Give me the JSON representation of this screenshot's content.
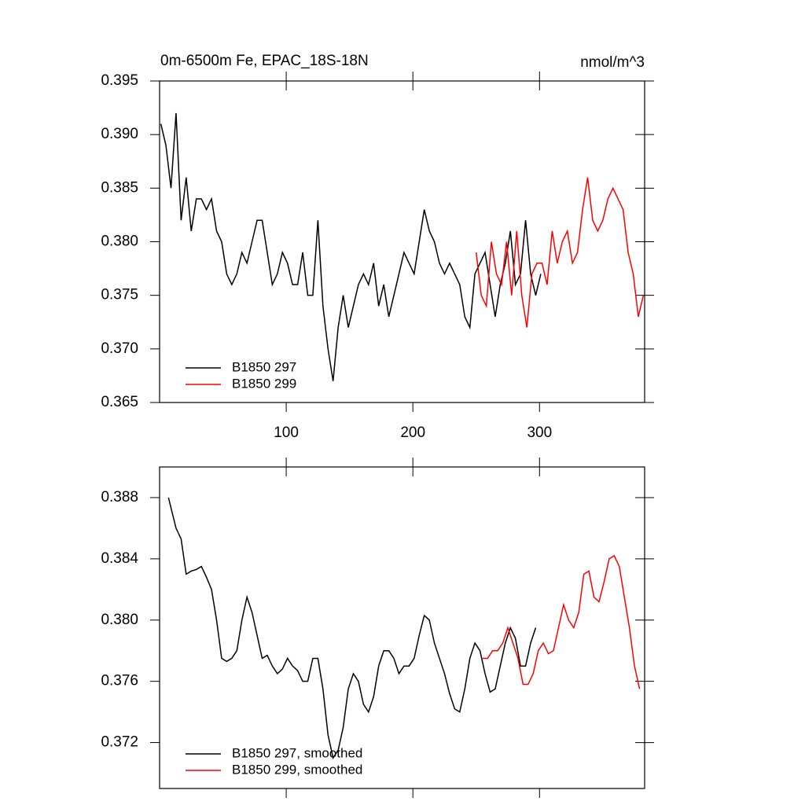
{
  "chart_data": [
    {
      "type": "line",
      "title": "0m-6500m Fe, EPAC_18S-18N",
      "units": "nmol/m^3",
      "xlim": [
        0,
        383
      ],
      "xticks": [
        100,
        200,
        300
      ],
      "show_xtick_labels": true,
      "ylim": [
        0.365,
        0.395
      ],
      "yticks": [
        0.365,
        {
          "value": 0.37,
          "label": "0.370"
        },
        0.375,
        {
          "value": 0.38,
          "label": "0.380"
        },
        0.385,
        {
          "value": 0.39,
          "label": "0.390"
        },
        0.395
      ],
      "legend": "lower left",
      "series": [
        {
          "name": "B1850 297",
          "color": "#000000",
          "x": [
            1,
            5,
            9,
            13,
            17,
            21,
            25,
            29,
            33,
            37,
            41,
            45,
            49,
            53,
            57,
            61,
            65,
            69,
            73,
            77,
            81,
            85,
            89,
            93,
            97,
            101,
            105,
            109,
            113,
            117,
            121,
            125,
            129,
            133,
            137,
            141,
            145,
            149,
            153,
            157,
            161,
            165,
            169,
            173,
            177,
            181,
            185,
            189,
            193,
            197,
            201,
            205,
            209,
            213,
            217,
            221,
            225,
            229,
            233,
            237,
            241,
            245,
            249,
            253,
            257,
            261,
            265,
            269,
            273,
            277,
            281,
            285,
            289,
            293,
            297,
            301
          ],
          "values": [
            0.391,
            0.389,
            0.385,
            0.392,
            0.382,
            0.386,
            0.381,
            0.384,
            0.384,
            0.383,
            0.384,
            0.381,
            0.38,
            0.377,
            0.376,
            0.377,
            0.379,
            0.378,
            0.38,
            0.382,
            0.382,
            0.379,
            0.376,
            0.377,
            0.379,
            0.378,
            0.376,
            0.376,
            0.379,
            0.375,
            0.375,
            0.382,
            0.374,
            0.37,
            0.367,
            0.372,
            0.375,
            0.372,
            0.374,
            0.376,
            0.377,
            0.376,
            0.378,
            0.374,
            0.376,
            0.373,
            0.375,
            0.377,
            0.379,
            0.378,
            0.377,
            0.38,
            0.383,
            0.381,
            0.38,
            0.378,
            0.377,
            0.378,
            0.377,
            0.376,
            0.373,
            0.372,
            0.377,
            0.378,
            0.379,
            0.376,
            0.373,
            0.376,
            0.378,
            0.381,
            0.376,
            0.377,
            0.382,
            0.377,
            0.375,
            0.377
          ]
        },
        {
          "name": "B1850 299",
          "color": "#ff0000",
          "x": [
            250,
            254,
            258,
            262,
            266,
            270,
            274,
            278,
            282,
            286,
            290,
            294,
            298,
            302,
            306,
            310,
            314,
            318,
            322,
            326,
            330,
            334,
            338,
            342,
            346,
            350,
            354,
            358,
            362,
            366,
            370,
            374,
            378,
            382
          ],
          "values": [
            0.379,
            0.375,
            0.374,
            0.38,
            0.377,
            0.376,
            0.38,
            0.375,
            0.381,
            0.375,
            0.372,
            0.377,
            0.378,
            0.378,
            0.376,
            0.381,
            0.378,
            0.38,
            0.381,
            0.378,
            0.379,
            0.383,
            0.386,
            0.382,
            0.381,
            0.382,
            0.384,
            0.385,
            0.384,
            0.383,
            0.379,
            0.377,
            0.373,
            0.375
          ]
        }
      ]
    },
    {
      "type": "line",
      "xlim": [
        0,
        383
      ],
      "xticks": [
        100,
        200,
        300
      ],
      "show_xtick_labels": false,
      "ylim": [
        0.369,
        0.39
      ],
      "yticks": [
        0.372,
        0.376,
        {
          "value": 0.38,
          "label": "0.380"
        },
        0.384,
        0.388
      ],
      "legend": "lower left",
      "series": [
        {
          "name": "B1850 297, smoothed",
          "color": "#000000",
          "x": [
            7,
            13,
            17,
            21,
            25,
            29,
            33,
            37,
            41,
            45,
            49,
            53,
            57,
            61,
            65,
            69,
            73,
            77,
            81,
            85,
            89,
            93,
            97,
            101,
            105,
            109,
            113,
            117,
            121,
            125,
            129,
            133,
            137,
            141,
            145,
            149,
            153,
            157,
            161,
            165,
            169,
            173,
            177,
            181,
            185,
            189,
            193,
            197,
            201,
            205,
            209,
            213,
            217,
            221,
            225,
            229,
            233,
            237,
            241,
            245,
            249,
            253,
            257,
            261,
            265,
            269,
            273,
            277,
            281,
            285,
            289,
            293,
            297
          ],
          "values": [
            0.388,
            0.386,
            0.3853,
            0.383,
            0.3832,
            0.3833,
            0.3835,
            0.3828,
            0.382,
            0.38,
            0.3775,
            0.3773,
            0.3775,
            0.378,
            0.38,
            0.3815,
            0.3805,
            0.379,
            0.3775,
            0.3777,
            0.377,
            0.3765,
            0.3768,
            0.3775,
            0.377,
            0.3767,
            0.376,
            0.376,
            0.3775,
            0.3775,
            0.3755,
            0.3725,
            0.371,
            0.3715,
            0.373,
            0.3755,
            0.3765,
            0.376,
            0.3745,
            0.374,
            0.375,
            0.377,
            0.378,
            0.378,
            0.3775,
            0.3765,
            0.377,
            0.377,
            0.3775,
            0.379,
            0.3803,
            0.38,
            0.3785,
            0.3775,
            0.3765,
            0.3752,
            0.3742,
            0.374,
            0.3755,
            0.3775,
            0.3785,
            0.378,
            0.3765,
            0.3753,
            0.3755,
            0.377,
            0.3785,
            0.3795,
            0.3788,
            0.377,
            0.377,
            0.3785,
            0.3795
          ]
        },
        {
          "name": "B1850 299, smoothed",
          "color": "#ff0000",
          "x": [
            255,
            259,
            263,
            267,
            271,
            275,
            279,
            283,
            287,
            291,
            295,
            299,
            303,
            307,
            311,
            315,
            319,
            323,
            327,
            331,
            335,
            339,
            343,
            347,
            351,
            355,
            359,
            363,
            367,
            371,
            375,
            379
          ],
          "values": [
            0.3775,
            0.3775,
            0.378,
            0.378,
            0.3785,
            0.3795,
            0.3785,
            0.3775,
            0.3758,
            0.3758,
            0.3765,
            0.378,
            0.3785,
            0.3778,
            0.378,
            0.3795,
            0.381,
            0.38,
            0.3795,
            0.3805,
            0.383,
            0.3832,
            0.3815,
            0.3812,
            0.3825,
            0.384,
            0.3842,
            0.3835,
            0.3815,
            0.3795,
            0.377,
            0.3755
          ]
        }
      ]
    }
  ]
}
